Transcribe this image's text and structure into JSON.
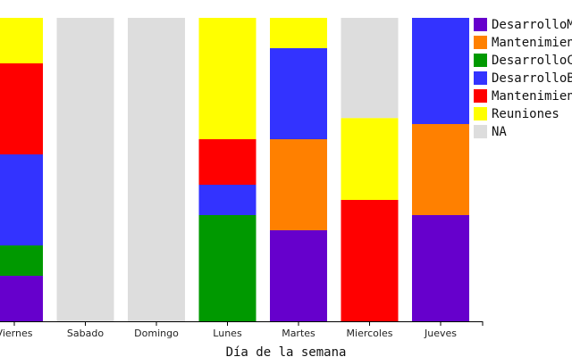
{
  "chart_data": {
    "type": "bar",
    "stacked": true,
    "title": "",
    "xlabel": "Día de la semana",
    "ylabel": "",
    "categories": [
      "Viernes",
      "Sabado",
      "Domingo",
      "Lunes",
      "Martes",
      "Miercoles",
      "Jueves"
    ],
    "ylim": [
      0,
      1
    ],
    "grid": false,
    "legend_position": "right",
    "series": [
      {
        "name": "DesarrolloMe",
        "color": "#6600CC",
        "values": [
          0.15,
          0,
          0,
          0,
          0.3,
          0,
          0.35
        ]
      },
      {
        "name": "Mantenimient",
        "color": "#FF8000",
        "values": [
          0,
          0,
          0,
          0,
          0.3,
          0,
          0.3
        ]
      },
      {
        "name": "DesarrolloCh",
        "color": "#009900",
        "values": [
          0.1,
          0,
          0,
          0.35,
          0,
          0,
          0
        ]
      },
      {
        "name": "DesarrolloBl",
        "color": "#3333FF",
        "values": [
          0.3,
          0,
          0,
          0.1,
          0.3,
          0,
          0.35
        ]
      },
      {
        "name": "Mantenimient",
        "color": "#FF0000",
        "values": [
          0.3,
          0,
          0,
          0.15,
          0,
          0.4,
          0
        ]
      },
      {
        "name": "Reuniones",
        "color": "#FFFF00",
        "values": [
          0.15,
          0,
          0,
          0.4,
          0.1,
          0.27,
          0
        ]
      },
      {
        "name": "NA",
        "color": "#DDDDDD",
        "values": [
          0,
          1.0,
          1.0,
          0,
          0,
          0.33,
          0
        ]
      }
    ]
  }
}
